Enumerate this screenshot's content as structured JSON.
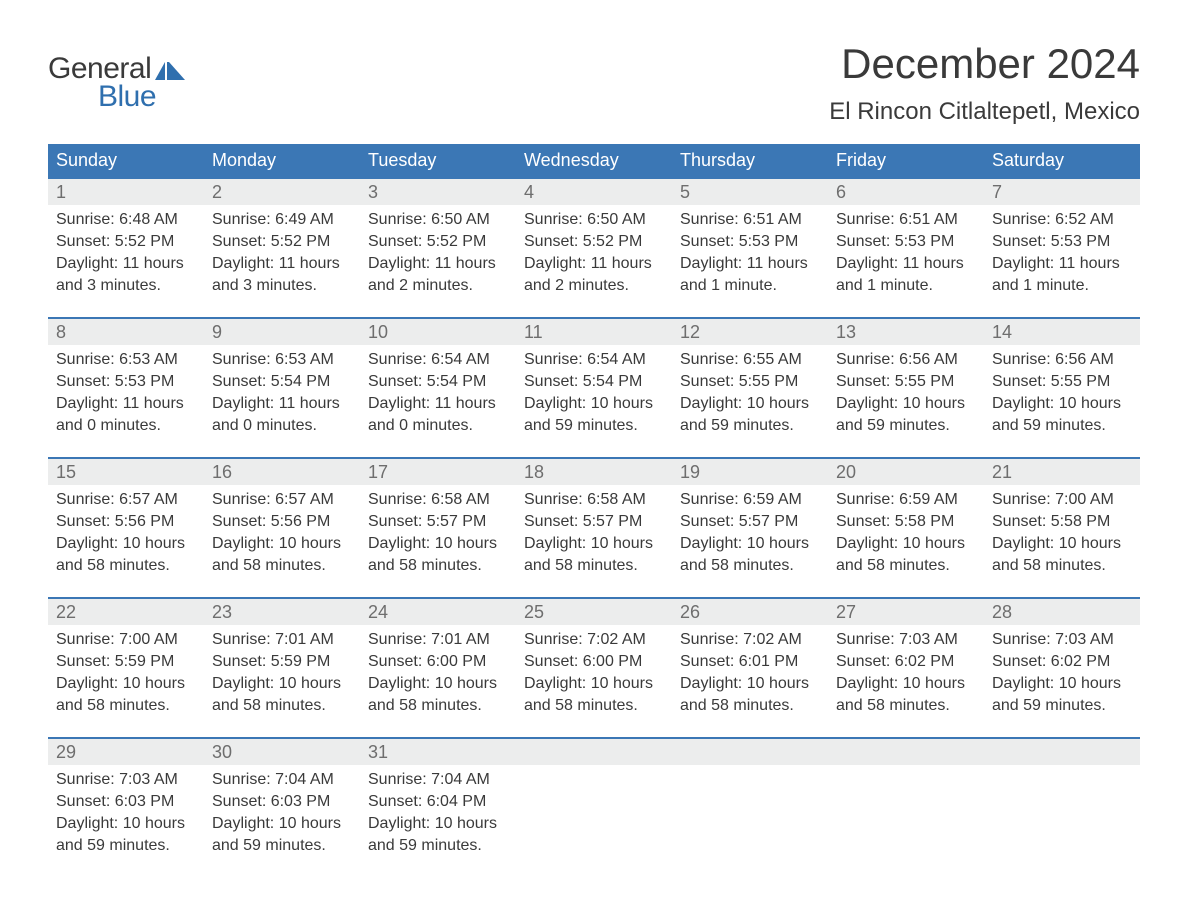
{
  "logo": {
    "text_general": "General",
    "text_blue": "Blue",
    "flag_color": "#2f6fae"
  },
  "title": {
    "month_year": "December 2024",
    "location": "El Rincon Citlaltepetl, Mexico"
  },
  "colors": {
    "header_bg": "#3b77b5",
    "header_text": "#ffffff",
    "daynum_bg": "#eceded",
    "daynum_text": "#6e6e6e",
    "body_text": "#3a3a3a",
    "week_border": "#3b77b5",
    "logo_blue": "#2f6fae",
    "background": "#ffffff"
  },
  "typography": {
    "month_title_fontsize": 42,
    "location_fontsize": 24,
    "weekday_fontsize": 18,
    "daynum_fontsize": 18,
    "content_fontsize": 16,
    "logo_fontsize": 30
  },
  "weekdays": [
    "Sunday",
    "Monday",
    "Tuesday",
    "Wednesday",
    "Thursday",
    "Friday",
    "Saturday"
  ],
  "weeks": [
    [
      {
        "day": "1",
        "sunrise": "Sunrise: 6:48 AM",
        "sunset": "Sunset: 5:52 PM",
        "daylight1": "Daylight: 11 hours",
        "daylight2": "and 3 minutes."
      },
      {
        "day": "2",
        "sunrise": "Sunrise: 6:49 AM",
        "sunset": "Sunset: 5:52 PM",
        "daylight1": "Daylight: 11 hours",
        "daylight2": "and 3 minutes."
      },
      {
        "day": "3",
        "sunrise": "Sunrise: 6:50 AM",
        "sunset": "Sunset: 5:52 PM",
        "daylight1": "Daylight: 11 hours",
        "daylight2": "and 2 minutes."
      },
      {
        "day": "4",
        "sunrise": "Sunrise: 6:50 AM",
        "sunset": "Sunset: 5:52 PM",
        "daylight1": "Daylight: 11 hours",
        "daylight2": "and 2 minutes."
      },
      {
        "day": "5",
        "sunrise": "Sunrise: 6:51 AM",
        "sunset": "Sunset: 5:53 PM",
        "daylight1": "Daylight: 11 hours",
        "daylight2": "and 1 minute."
      },
      {
        "day": "6",
        "sunrise": "Sunrise: 6:51 AM",
        "sunset": "Sunset: 5:53 PM",
        "daylight1": "Daylight: 11 hours",
        "daylight2": "and 1 minute."
      },
      {
        "day": "7",
        "sunrise": "Sunrise: 6:52 AM",
        "sunset": "Sunset: 5:53 PM",
        "daylight1": "Daylight: 11 hours",
        "daylight2": "and 1 minute."
      }
    ],
    [
      {
        "day": "8",
        "sunrise": "Sunrise: 6:53 AM",
        "sunset": "Sunset: 5:53 PM",
        "daylight1": "Daylight: 11 hours",
        "daylight2": "and 0 minutes."
      },
      {
        "day": "9",
        "sunrise": "Sunrise: 6:53 AM",
        "sunset": "Sunset: 5:54 PM",
        "daylight1": "Daylight: 11 hours",
        "daylight2": "and 0 minutes."
      },
      {
        "day": "10",
        "sunrise": "Sunrise: 6:54 AM",
        "sunset": "Sunset: 5:54 PM",
        "daylight1": "Daylight: 11 hours",
        "daylight2": "and 0 minutes."
      },
      {
        "day": "11",
        "sunrise": "Sunrise: 6:54 AM",
        "sunset": "Sunset: 5:54 PM",
        "daylight1": "Daylight: 10 hours",
        "daylight2": "and 59 minutes."
      },
      {
        "day": "12",
        "sunrise": "Sunrise: 6:55 AM",
        "sunset": "Sunset: 5:55 PM",
        "daylight1": "Daylight: 10 hours",
        "daylight2": "and 59 minutes."
      },
      {
        "day": "13",
        "sunrise": "Sunrise: 6:56 AM",
        "sunset": "Sunset: 5:55 PM",
        "daylight1": "Daylight: 10 hours",
        "daylight2": "and 59 minutes."
      },
      {
        "day": "14",
        "sunrise": "Sunrise: 6:56 AM",
        "sunset": "Sunset: 5:55 PM",
        "daylight1": "Daylight: 10 hours",
        "daylight2": "and 59 minutes."
      }
    ],
    [
      {
        "day": "15",
        "sunrise": "Sunrise: 6:57 AM",
        "sunset": "Sunset: 5:56 PM",
        "daylight1": "Daylight: 10 hours",
        "daylight2": "and 58 minutes."
      },
      {
        "day": "16",
        "sunrise": "Sunrise: 6:57 AM",
        "sunset": "Sunset: 5:56 PM",
        "daylight1": "Daylight: 10 hours",
        "daylight2": "and 58 minutes."
      },
      {
        "day": "17",
        "sunrise": "Sunrise: 6:58 AM",
        "sunset": "Sunset: 5:57 PM",
        "daylight1": "Daylight: 10 hours",
        "daylight2": "and 58 minutes."
      },
      {
        "day": "18",
        "sunrise": "Sunrise: 6:58 AM",
        "sunset": "Sunset: 5:57 PM",
        "daylight1": "Daylight: 10 hours",
        "daylight2": "and 58 minutes."
      },
      {
        "day": "19",
        "sunrise": "Sunrise: 6:59 AM",
        "sunset": "Sunset: 5:57 PM",
        "daylight1": "Daylight: 10 hours",
        "daylight2": "and 58 minutes."
      },
      {
        "day": "20",
        "sunrise": "Sunrise: 6:59 AM",
        "sunset": "Sunset: 5:58 PM",
        "daylight1": "Daylight: 10 hours",
        "daylight2": "and 58 minutes."
      },
      {
        "day": "21",
        "sunrise": "Sunrise: 7:00 AM",
        "sunset": "Sunset: 5:58 PM",
        "daylight1": "Daylight: 10 hours",
        "daylight2": "and 58 minutes."
      }
    ],
    [
      {
        "day": "22",
        "sunrise": "Sunrise: 7:00 AM",
        "sunset": "Sunset: 5:59 PM",
        "daylight1": "Daylight: 10 hours",
        "daylight2": "and 58 minutes."
      },
      {
        "day": "23",
        "sunrise": "Sunrise: 7:01 AM",
        "sunset": "Sunset: 5:59 PM",
        "daylight1": "Daylight: 10 hours",
        "daylight2": "and 58 minutes."
      },
      {
        "day": "24",
        "sunrise": "Sunrise: 7:01 AM",
        "sunset": "Sunset: 6:00 PM",
        "daylight1": "Daylight: 10 hours",
        "daylight2": "and 58 minutes."
      },
      {
        "day": "25",
        "sunrise": "Sunrise: 7:02 AM",
        "sunset": "Sunset: 6:00 PM",
        "daylight1": "Daylight: 10 hours",
        "daylight2": "and 58 minutes."
      },
      {
        "day": "26",
        "sunrise": "Sunrise: 7:02 AM",
        "sunset": "Sunset: 6:01 PM",
        "daylight1": "Daylight: 10 hours",
        "daylight2": "and 58 minutes."
      },
      {
        "day": "27",
        "sunrise": "Sunrise: 7:03 AM",
        "sunset": "Sunset: 6:02 PM",
        "daylight1": "Daylight: 10 hours",
        "daylight2": "and 58 minutes."
      },
      {
        "day": "28",
        "sunrise": "Sunrise: 7:03 AM",
        "sunset": "Sunset: 6:02 PM",
        "daylight1": "Daylight: 10 hours",
        "daylight2": "and 59 minutes."
      }
    ],
    [
      {
        "day": "29",
        "sunrise": "Sunrise: 7:03 AM",
        "sunset": "Sunset: 6:03 PM",
        "daylight1": "Daylight: 10 hours",
        "daylight2": "and 59 minutes."
      },
      {
        "day": "30",
        "sunrise": "Sunrise: 7:04 AM",
        "sunset": "Sunset: 6:03 PM",
        "daylight1": "Daylight: 10 hours",
        "daylight2": "and 59 minutes."
      },
      {
        "day": "31",
        "sunrise": "Sunrise: 7:04 AM",
        "sunset": "Sunset: 6:04 PM",
        "daylight1": "Daylight: 10 hours",
        "daylight2": "and 59 minutes."
      },
      null,
      null,
      null,
      null
    ]
  ]
}
